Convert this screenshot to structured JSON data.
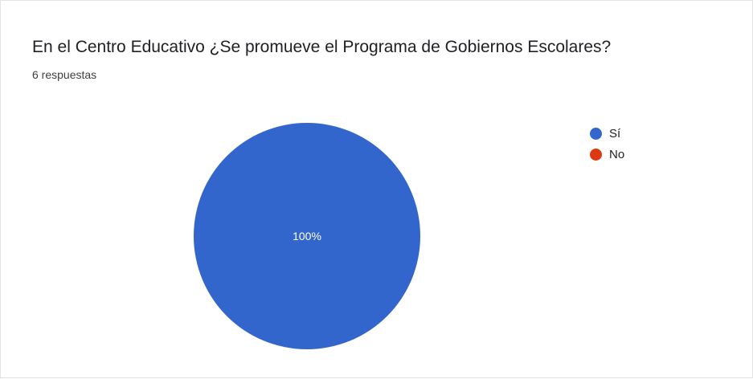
{
  "chart_data": {
    "type": "pie",
    "title": "En el Centro Educativo ¿Se promueve el Programa de Gobiernos Escolares?",
    "subtitle": "6 respuestas",
    "categories": [
      "Sí",
      "No"
    ],
    "values": [
      100,
      0
    ],
    "data_labels": [
      "100%",
      ""
    ],
    "colors": [
      "#3366cc",
      "#dc3912"
    ],
    "legend_position": "right"
  }
}
